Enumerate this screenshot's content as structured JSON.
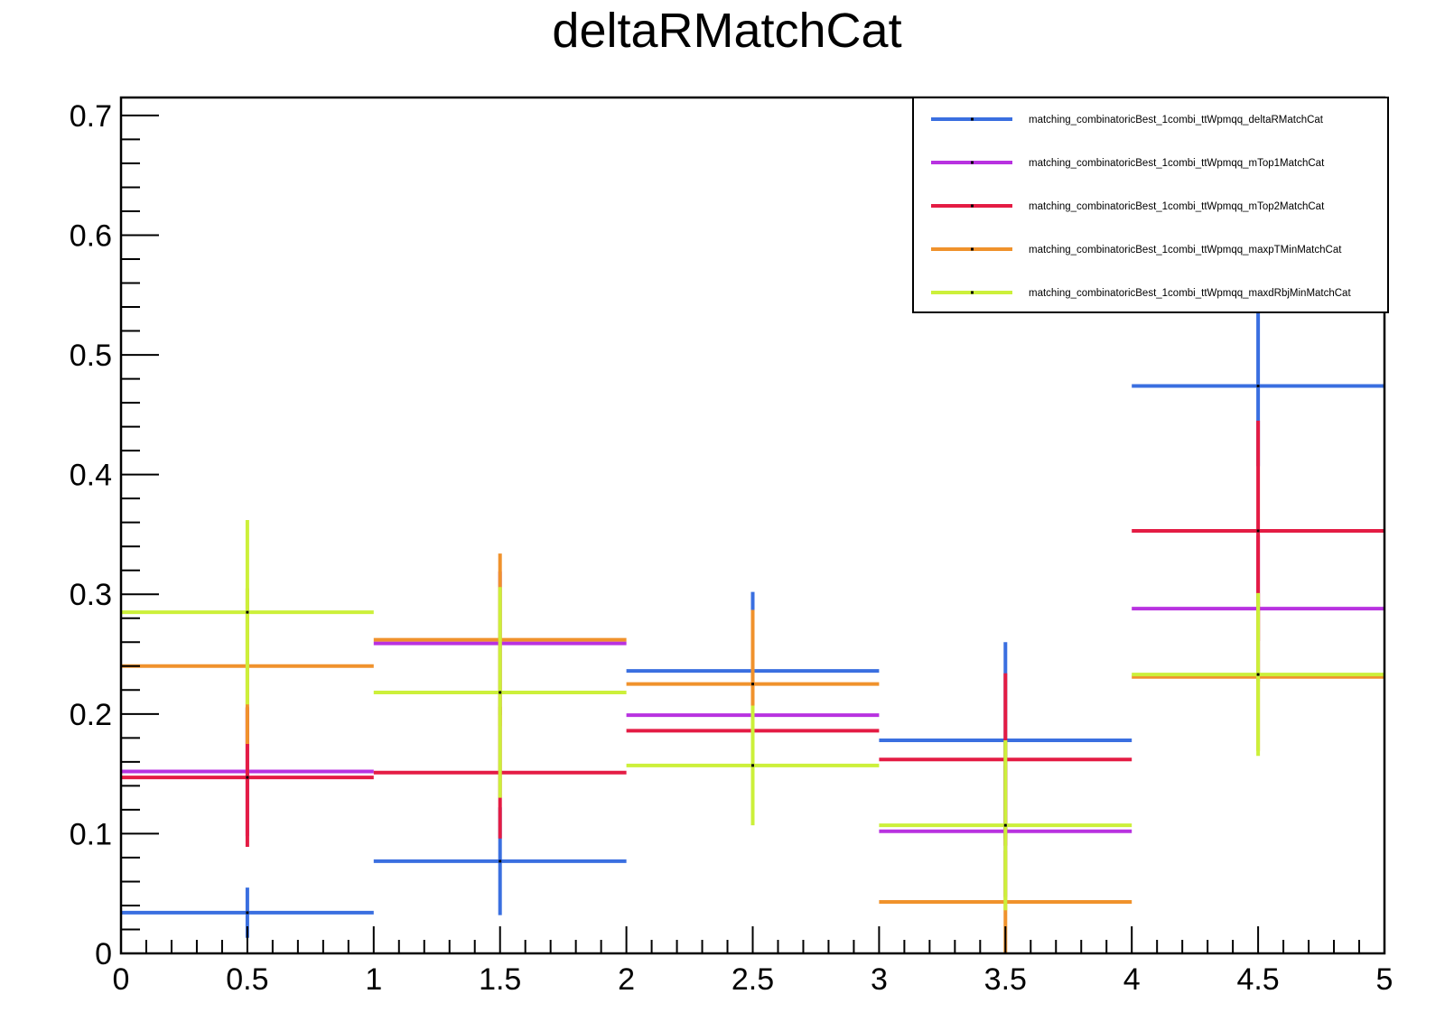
{
  "chart_data": {
    "type": "scatter",
    "title": "deltaRMatchCat",
    "xlabel": "",
    "ylabel": "",
    "xlim": [
      0,
      5
    ],
    "ylim": [
      0,
      0.715
    ],
    "x_ticks": [
      "0",
      "0.5",
      "1",
      "1.5",
      "2",
      "2.5",
      "3",
      "3.5",
      "4",
      "4.5",
      "5"
    ],
    "y_ticks": [
      "0",
      "0.1",
      "0.2",
      "0.3",
      "0.4",
      "0.5",
      "0.6",
      "0.7"
    ],
    "bins": {
      "centers": [
        0.5,
        1.5,
        2.5,
        3.5,
        4.5
      ],
      "half_width": 0.5
    },
    "legend_position": "top-right",
    "grid": false,
    "series": [
      {
        "name": "matching_combinatoricBest_1combi_ttWpmqq_deltaRMatchCat",
        "color": "#3a6fe0",
        "values": [
          0.034,
          0.077,
          0.236,
          0.178,
          0.474
        ],
        "errors": [
          0.021,
          0.045,
          0.066,
          0.082,
          0.067
        ]
      },
      {
        "name": "matching_combinatoricBest_1combi_ttWpmqq_mTop1MatchCat",
        "color": "#b832e0",
        "values": [
          0.152,
          0.259,
          0.199,
          0.102,
          0.288
        ],
        "errors": [
          0.054,
          0.06,
          0.058,
          0.055,
          0.061
        ]
      },
      {
        "name": "matching_combinatoricBest_1combi_ttWpmqq_mTop2MatchCat",
        "color": "#e41c44",
        "values": [
          0.147,
          0.151,
          0.186,
          0.162,
          0.353
        ],
        "errors": [
          0.058,
          0.055,
          0.05,
          0.072,
          0.092
        ]
      },
      {
        "name": "matching_combinatoricBest_1combi_ttWpmqq_maxpTMinMatchCat",
        "color": "#f0922c",
        "values": [
          0.24,
          0.262,
          0.225,
          0.043,
          0.231
        ],
        "errors": [
          0.065,
          0.072,
          0.062,
          0.043,
          0.062
        ]
      },
      {
        "name": "matching_combinatoricBest_1combi_ttWpmqq_maxdRbjMinMatchCat",
        "color": "#ccf03a",
        "values": [
          0.285,
          0.218,
          0.157,
          0.107,
          0.233
        ],
        "errors": [
          0.077,
          0.088,
          0.05,
          0.071,
          0.068
        ]
      }
    ]
  }
}
